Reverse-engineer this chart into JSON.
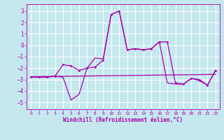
{
  "xlabel": "Windchill (Refroidissement éolien,°C)",
  "xlim": [
    -0.5,
    23.5
  ],
  "ylim": [
    -5.6,
    3.6
  ],
  "yticks": [
    -5,
    -4,
    -3,
    -2,
    -1,
    0,
    1,
    2,
    3
  ],
  "xticks": [
    0,
    1,
    2,
    3,
    4,
    5,
    6,
    7,
    8,
    9,
    10,
    11,
    12,
    13,
    14,
    15,
    16,
    17,
    18,
    19,
    20,
    21,
    22,
    23
  ],
  "bg_color": "#c5e8ee",
  "line_color": "#aa00aa",
  "grid_color": "#ffffff",
  "trend_x": [
    0,
    23
  ],
  "trend_y": [
    -2.75,
    -2.55
  ],
  "series_main_x": [
    0,
    1,
    2,
    3,
    4,
    5,
    6,
    7,
    8,
    9,
    10,
    11,
    12,
    13,
    14,
    15,
    16,
    17,
    18,
    19,
    20,
    21,
    22,
    23
  ],
  "series_main_y": [
    -2.8,
    -2.8,
    -2.8,
    -2.7,
    -1.7,
    -1.8,
    -2.2,
    -2.0,
    -1.9,
    -1.3,
    2.7,
    3.0,
    -0.4,
    -0.3,
    -0.4,
    -0.3,
    0.3,
    0.3,
    -3.3,
    -3.4,
    -2.9,
    -3.1,
    -3.5,
    -2.2
  ],
  "series_alt_x": [
    0,
    1,
    2,
    3,
    4,
    5,
    6,
    7,
    8,
    9,
    10,
    11,
    12,
    13,
    14,
    15,
    16,
    17,
    18,
    19,
    20,
    21,
    22,
    23
  ],
  "series_alt_y": [
    -2.8,
    -2.8,
    -2.8,
    -2.7,
    -2.8,
    -4.8,
    -4.3,
    -2.0,
    -1.1,
    -1.2,
    2.7,
    3.0,
    -0.4,
    -0.3,
    -0.4,
    -0.3,
    0.3,
    -3.3,
    -3.4,
    -3.4,
    -2.9,
    -3.0,
    -3.5,
    -2.2
  ]
}
